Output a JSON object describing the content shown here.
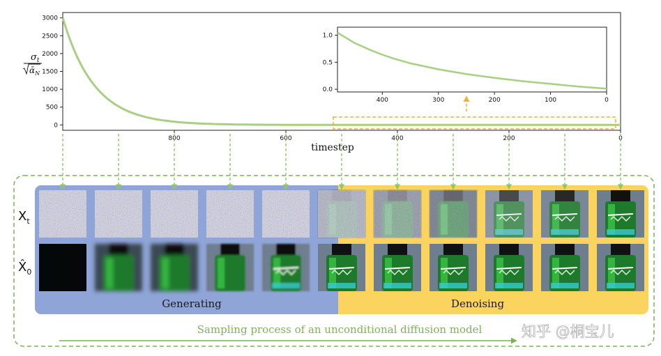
{
  "main_chart": {
    "ylabel_numerator": "σ",
    "ylabel_numerator_sub": "t",
    "ylabel_denominator": "ᾱ",
    "ylabel_denominator_sub": "N",
    "xlabel": "timestep",
    "x_tick_labels": [
      "800",
      "600",
      "400",
      "200",
      "0"
    ],
    "y_tick_labels": [
      "0",
      "500",
      "1000",
      "1500",
      "2000",
      "2500",
      "3000"
    ]
  },
  "inset_chart": {
    "x_tick_labels": [
      "400",
      "300",
      "200",
      "100",
      "0"
    ],
    "y_tick_labels": [
      "0.0",
      "0.5",
      "1.0"
    ]
  },
  "chart_data": [
    {
      "type": "line",
      "title": "",
      "xlabel": "timestep",
      "ylabel": "σ_t / √ᾱ_N",
      "xlim": [
        1000,
        0
      ],
      "ylim": [
        -150,
        3150
      ],
      "x": [
        1000,
        950,
        900,
        850,
        800,
        750,
        700,
        650,
        600,
        550,
        500,
        450,
        400,
        300,
        200,
        100,
        0
      ],
      "series": [
        {
          "values": [
            3000,
            1200,
            500,
            220,
            110,
            60,
            30,
            18,
            10,
            6,
            4,
            2,
            1.6,
            0.8,
            0.4,
            0.2,
            0
          ],
          "color": "#a8cf82"
        }
      ],
      "grid": false
    },
    {
      "type": "line",
      "title": "",
      "xlim": [
        480,
        0
      ],
      "ylim": [
        -0.05,
        1.15
      ],
      "x": [
        480,
        450,
        420,
        400,
        380,
        350,
        300,
        250,
        200,
        150,
        100,
        50,
        0
      ],
      "series": [
        {
          "values": [
            1.05,
            0.86,
            0.72,
            0.64,
            0.57,
            0.48,
            0.37,
            0.28,
            0.21,
            0.15,
            0.1,
            0.05,
            0.01
          ],
          "color": "#a8cf82"
        }
      ],
      "grid": false
    }
  ],
  "row_labels": {
    "xt": "X",
    "xt_sub": "t",
    "x0": "X̂",
    "x0_sub": "0"
  },
  "phases": {
    "generating": "Generating",
    "denoising": "Denoising"
  },
  "caption": "Sampling process of an unconditional diffusion model",
  "watermark": "知乎 @桐宝儿",
  "colors": {
    "curve": "#a8cf82",
    "generating_bg": "#8fa4d7",
    "denoising_bg": "#fbd35f",
    "arrow_green": "#92c46b",
    "inset_box": "#f0b429",
    "outer_border": "#7cb157"
  }
}
